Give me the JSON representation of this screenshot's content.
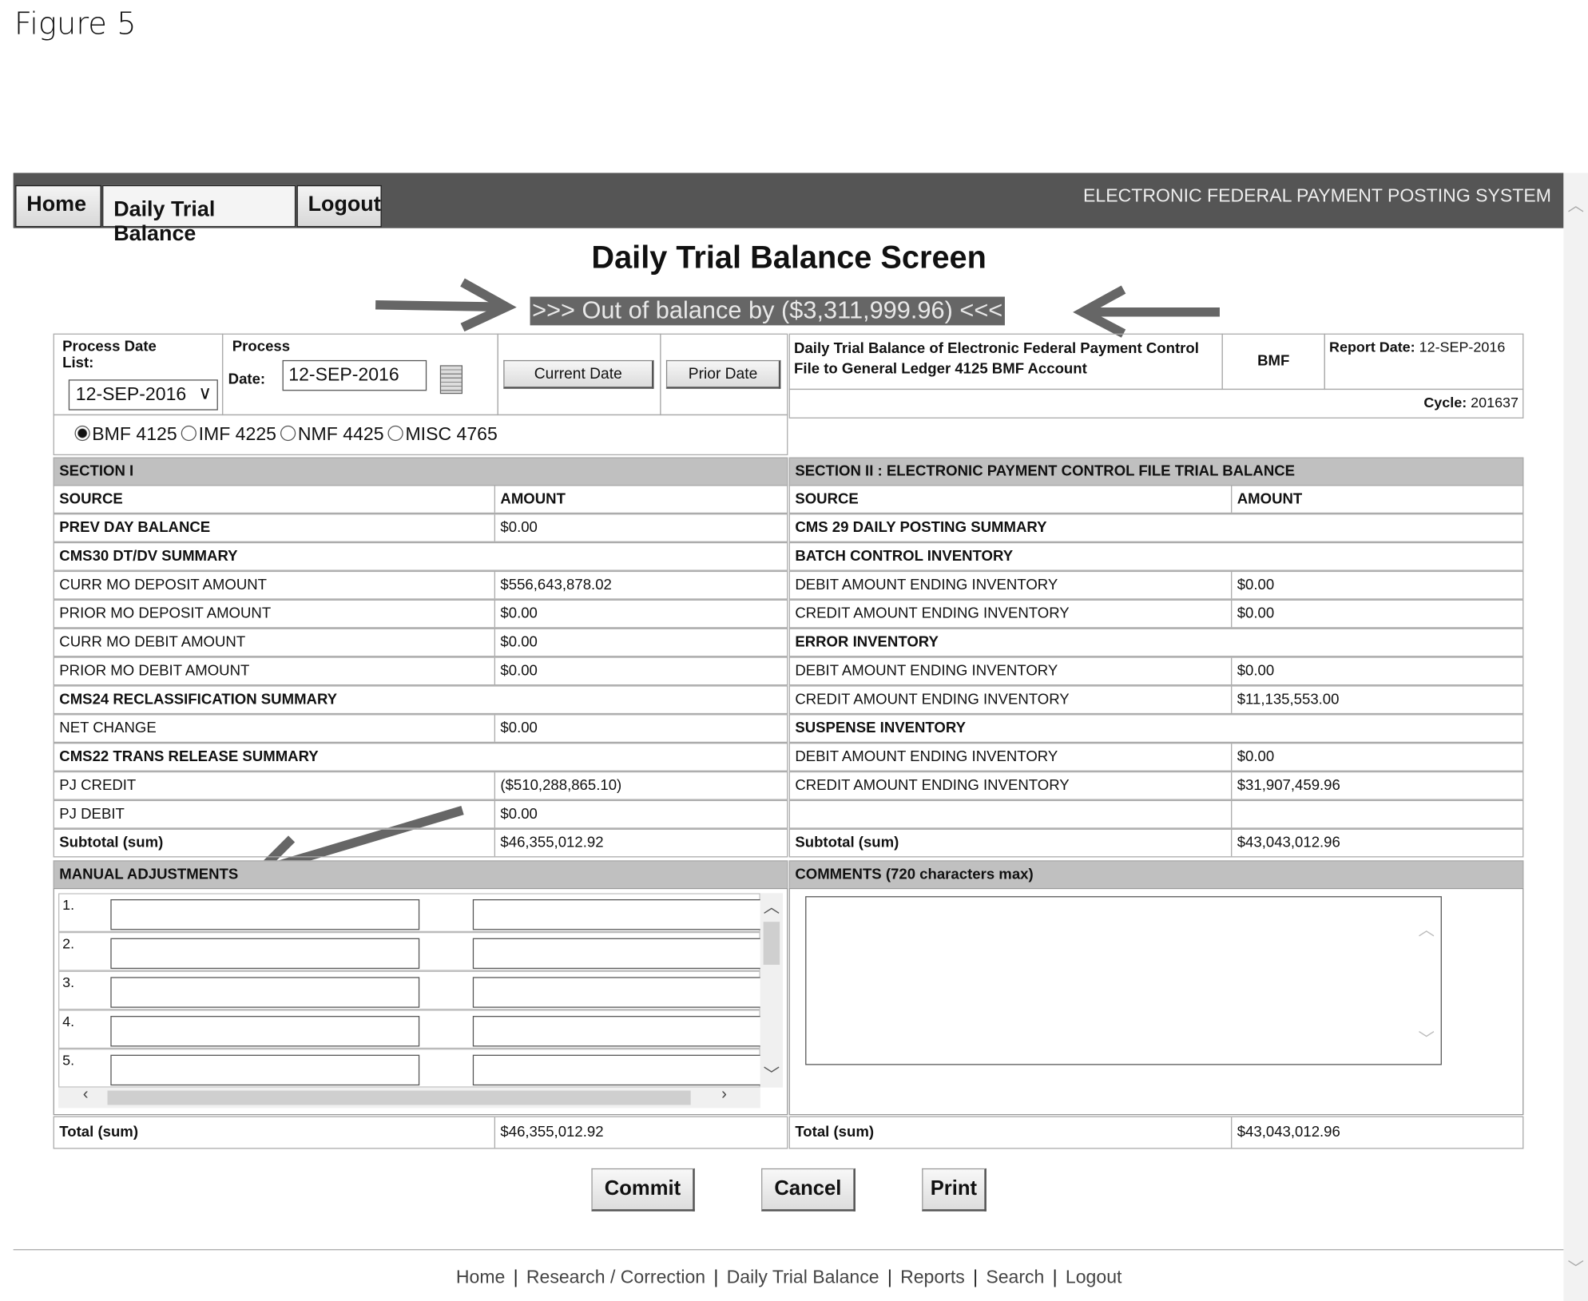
{
  "figure_label": "Figure 5",
  "nav": {
    "tabs": [
      "Home",
      "Daily Trial Balance",
      "Logout"
    ],
    "system_name": "ELECTRONIC FEDERAL PAYMENT POSTING SYSTEM"
  },
  "page_title": "Daily Trial Balance Screen",
  "balance_banner": ">>> Out of balance by ($3,311,999.96) <<<",
  "controls": {
    "process_date_list_label": "Process Date List:",
    "process_date_list_value": "12-SEP-2016",
    "process_label": "Process",
    "date_label": "Date:",
    "date_value": "12-SEP-2016",
    "current_date": "Current Date",
    "prior_date": "Prior Date",
    "accounts": [
      {
        "label": "BMF 4125",
        "checked": true
      },
      {
        "label": "IMF 4225",
        "checked": false
      },
      {
        "label": "NMF 4425",
        "checked": false
      },
      {
        "label": "MISC 4765",
        "checked": false
      }
    ]
  },
  "report": {
    "description": "Daily Trial Balance of Electronic Federal Payment Control File to General Ledger 4125 BMF Account",
    "type": "BMF",
    "report_date_label": "Report Date:",
    "report_date": "12-SEP-2016",
    "cycle_label": "Cycle:",
    "cycle": "201637"
  },
  "section1": {
    "title": "SECTION I",
    "rows": [
      {
        "s": "SOURCE",
        "a": "AMOUNT",
        "bold": true
      },
      {
        "s": "PREV DAY BALANCE",
        "a": "$0.00",
        "bold": true
      },
      {
        "s": "CMS30 DT/DV SUMMARY",
        "bold": true,
        "span": true
      },
      {
        "s": "CURR MO DEPOSIT AMOUNT",
        "a": "$556,643,878.02"
      },
      {
        "s": "PRIOR MO DEPOSIT AMOUNT",
        "a": "$0.00"
      },
      {
        "s": "CURR MO DEBIT AMOUNT",
        "a": "$0.00"
      },
      {
        "s": "PRIOR MO DEBIT AMOUNT",
        "a": "$0.00"
      },
      {
        "s": "CMS24 RECLASSIFICATION SUMMARY",
        "bold": true,
        "span": true
      },
      {
        "s": "NET CHANGE",
        "a": "$0.00"
      },
      {
        "s": "CMS22 TRANS RELEASE SUMMARY",
        "bold": true,
        "span": true
      },
      {
        "s": "PJ CREDIT",
        "a": "($510,288,865.10)"
      },
      {
        "s": "PJ DEBIT",
        "a": "$0.00"
      },
      {
        "s": "Subtotal (sum)",
        "a": "$46,355,012.92",
        "bold": true
      }
    ]
  },
  "section2": {
    "title": "SECTION II : ELECTRONIC PAYMENT CONTROL FILE TRIAL BALANCE",
    "rows": [
      {
        "s": "SOURCE",
        "a": "AMOUNT",
        "bold": true
      },
      {
        "s": "CMS 29 DAILY POSTING SUMMARY",
        "bold": true,
        "span": true
      },
      {
        "s": "BATCH CONTROL INVENTORY",
        "bold": true,
        "span": true
      },
      {
        "s": "DEBIT AMOUNT ENDING INVENTORY",
        "a": "$0.00"
      },
      {
        "s": "CREDIT AMOUNT ENDING INVENTORY",
        "a": "$0.00"
      },
      {
        "s": "ERROR INVENTORY",
        "bold": true,
        "span": true
      },
      {
        "s": "DEBIT AMOUNT ENDING INVENTORY",
        "a": "$0.00"
      },
      {
        "s": "CREDIT AMOUNT ENDING INVENTORY",
        "a": "$11,135,553.00"
      },
      {
        "s": "SUSPENSE INVENTORY",
        "bold": true,
        "span": true
      },
      {
        "s": "DEBIT AMOUNT ENDING INVENTORY",
        "a": "$0.00"
      },
      {
        "s": "CREDIT AMOUNT ENDING INVENTORY",
        "a": "$31,907,459.96"
      },
      {
        "s": "",
        "a": ""
      },
      {
        "s": "Subtotal (sum)",
        "a": "$43,043,012.96",
        "bold": true
      }
    ]
  },
  "manual_adjustments": {
    "title": "MANUAL ADJUSTMENTS",
    "line_numbers": [
      "1.",
      "2.",
      "3.",
      "4.",
      "5."
    ]
  },
  "comments": {
    "title": "COMMENTS (720 characters max)",
    "value": ""
  },
  "totals": {
    "label": "Total (sum)",
    "left": "$46,355,012.92",
    "right": "$43,043,012.96"
  },
  "actions": {
    "commit": "Commit",
    "cancel": "Cancel",
    "print": "Print"
  },
  "footer": [
    "Home",
    "Research / Correction",
    "Daily Trial Balance",
    "Reports",
    "Search",
    "Logout"
  ]
}
